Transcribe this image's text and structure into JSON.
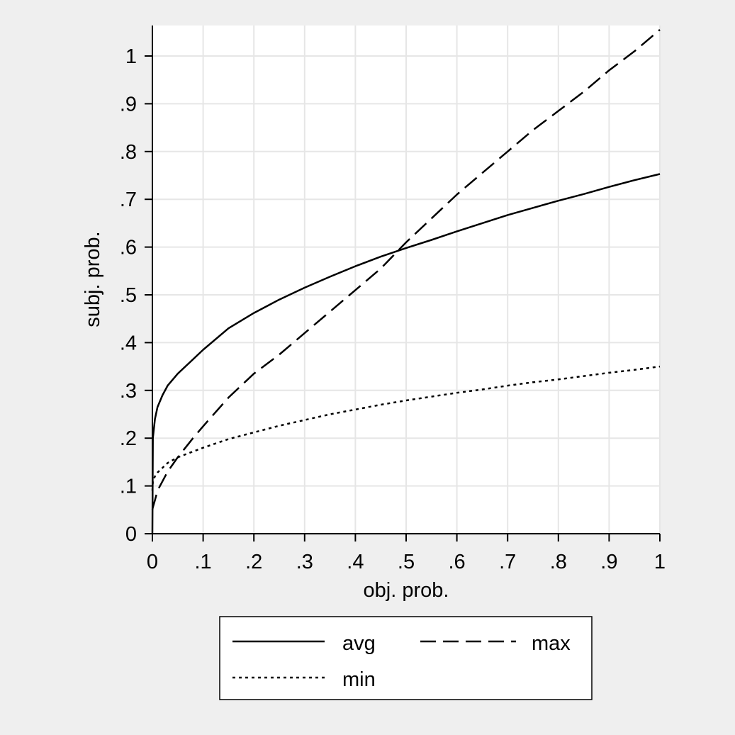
{
  "chart_data": {
    "type": "line",
    "title": "",
    "xlabel": "obj. prob.",
    "ylabel": "subj. prob.",
    "xlim": [
      0,
      1
    ],
    "ylim": [
      0,
      1.06
    ],
    "grid": true,
    "legend_position": "bottom",
    "x_ticks": [
      "0",
      ".1",
      ".2",
      ".3",
      ".4",
      ".5",
      ".6",
      ".7",
      ".8",
      ".9",
      "1"
    ],
    "y_ticks": [
      "0",
      ".1",
      ".2",
      ".3",
      ".4",
      ".5",
      ".6",
      ".7",
      ".8",
      ".9",
      "1"
    ],
    "x": [
      0,
      0.001,
      0.005,
      0.01,
      0.02,
      0.03,
      0.05,
      0.08,
      0.1,
      0.15,
      0.2,
      0.25,
      0.3,
      0.35,
      0.4,
      0.45,
      0.5,
      0.55,
      0.6,
      0.65,
      0.7,
      0.75,
      0.8,
      0.85,
      0.9,
      0.95,
      1.0
    ],
    "series": [
      {
        "name": "avg",
        "style": "solid",
        "color": "#000000",
        "values": [
          0.0,
          0.2,
          0.24,
          0.265,
          0.29,
          0.31,
          0.335,
          0.365,
          0.385,
          0.43,
          0.462,
          0.49,
          0.515,
          0.538,
          0.56,
          0.58,
          0.598,
          0.615,
          0.633,
          0.65,
          0.667,
          0.682,
          0.697,
          0.711,
          0.726,
          0.74,
          0.753
        ]
      },
      {
        "name": "max",
        "style": "dashed",
        "color": "#000000",
        "values": [
          0.05,
          0.055,
          0.07,
          0.09,
          0.11,
          0.13,
          0.16,
          0.2,
          0.225,
          0.285,
          0.335,
          0.375,
          0.42,
          0.465,
          0.51,
          0.555,
          0.61,
          0.66,
          0.71,
          0.755,
          0.8,
          0.845,
          0.885,
          0.925,
          0.97,
          1.01,
          1.055
        ]
      },
      {
        "name": "min",
        "style": "dotted",
        "color": "#000000",
        "values": [
          0.09,
          0.11,
          0.12,
          0.128,
          0.138,
          0.148,
          0.16,
          0.172,
          0.18,
          0.198,
          0.212,
          0.226,
          0.238,
          0.25,
          0.26,
          0.27,
          0.279,
          0.287,
          0.295,
          0.302,
          0.31,
          0.317,
          0.323,
          0.33,
          0.337,
          0.343,
          0.35
        ]
      }
    ]
  }
}
